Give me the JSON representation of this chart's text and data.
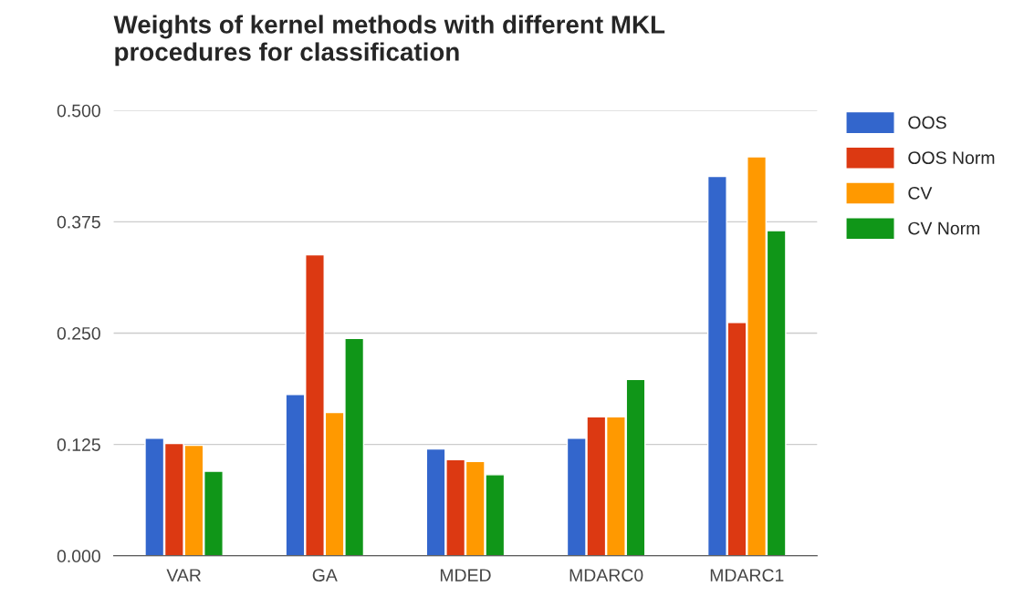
{
  "chart_data": {
    "type": "bar",
    "title": "Weights of kernel methods with different MKL\nprocedures for classification",
    "categories": [
      "VAR",
      "GA",
      "MDED",
      "MDARC0",
      "MDARC1"
    ],
    "series": [
      {
        "name": "OOS",
        "color": "#3366cc",
        "values": [
          0.132,
          0.181,
          0.12,
          0.132,
          0.426
        ]
      },
      {
        "name": "OOS Norm",
        "color": "#dc3912",
        "values": [
          0.126,
          0.338,
          0.108,
          0.156,
          0.262
        ]
      },
      {
        "name": "CV",
        "color": "#ff9900",
        "values": [
          0.124,
          0.161,
          0.106,
          0.156,
          0.448
        ]
      },
      {
        "name": "CV Norm",
        "color": "#109618",
        "values": [
          0.095,
          0.244,
          0.091,
          0.198,
          0.365
        ]
      }
    ],
    "ylim": [
      0,
      0.5
    ],
    "yticks": [
      {
        "value": 0,
        "label": "0.000"
      },
      {
        "value": 0.125,
        "label": "0.125"
      },
      {
        "value": 0.25,
        "label": "0.250"
      },
      {
        "value": 0.375,
        "label": "0.375"
      },
      {
        "value": 0.5,
        "label": "0.500"
      }
    ],
    "grid": "y",
    "legend": "top right"
  }
}
